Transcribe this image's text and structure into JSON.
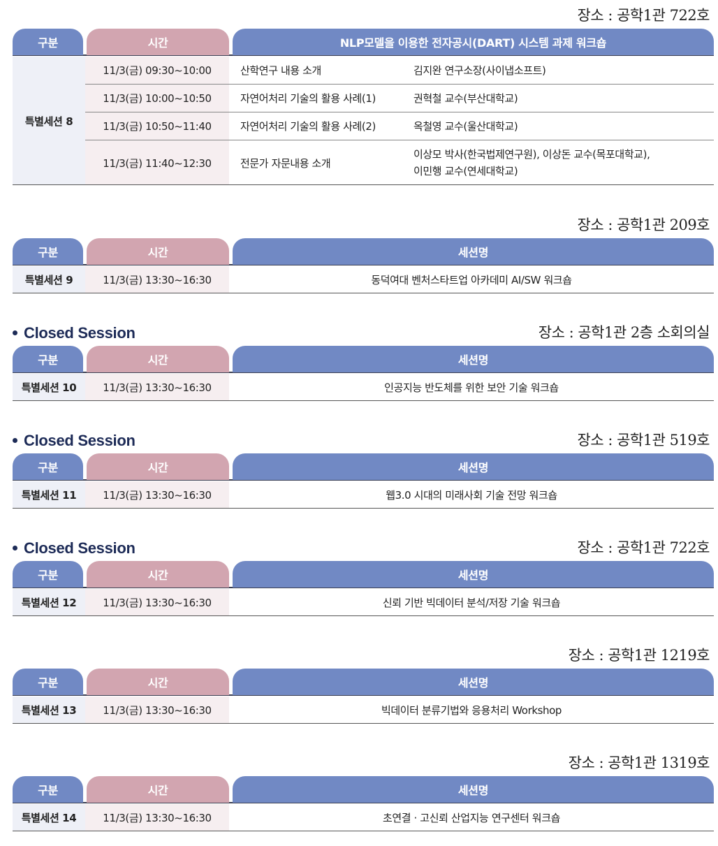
{
  "headers": {
    "gubun": "구분",
    "time": "시간",
    "session_name": "세션명"
  },
  "s8": {
    "location": "장소 : 공학1관 722호",
    "title": "NLP모델을 이용한 전자공시(DART) 시스템 과제 워크숍",
    "gubun": "특별세션 8",
    "rows": [
      {
        "time": "11/3(금) 09:30~10:00",
        "topic": "산학연구 내용 소개",
        "speaker": "김지완 연구소장(사이냅소프트)"
      },
      {
        "time": "11/3(금) 10:00~10:50",
        "topic": "자연어처리 기술의 활용 사례(1)",
        "speaker": "권혁철 교수(부산대학교)"
      },
      {
        "time": "11/3(금) 10:50~11:40",
        "topic": "자연어처리 기술의 활용 사례(2)",
        "speaker": "옥철영 교수(울산대학교)"
      },
      {
        "time": "11/3(금) 11:40~12:30",
        "topic": "전문가 자문내용 소개",
        "speaker": "이상모 박사(한국법제연구원), 이상돈 교수(목포대학교),",
        "speaker2": "이민행 교수(연세대학교)"
      }
    ]
  },
  "sessions": [
    {
      "closed": "",
      "location": "장소 : 공학1관 209호",
      "gubun": "특별세션 9",
      "time": "11/3(금) 13:30~16:30",
      "name": "동덕여대 벤처스타트업 아카데미 AI/SW 워크숍"
    },
    {
      "closed": "Closed Session",
      "location": "장소 : 공학1관 2층 소회의실",
      "gubun": "특별세션 10",
      "time": "11/3(금) 13:30~16:30",
      "name": "인공지능 반도체를 위한 보안 기술 워크숍"
    },
    {
      "closed": "Closed Session",
      "location": "장소 : 공학1관 519호",
      "gubun": "특별세션 11",
      "time": "11/3(금) 13:30~16:30",
      "name": "웹3.0 시대의 미래사회 기술 전망 워크숍"
    },
    {
      "closed": "Closed Session",
      "location": "장소 : 공학1관 722호",
      "gubun": "특별세션 12",
      "time": "11/3(금) 13:30~16:30",
      "name": "신뢰 기반 빅데이터 분석/저장 기술 워크숍"
    },
    {
      "closed": "",
      "location": "장소 : 공학1관 1219호",
      "gubun": "특별세션 13",
      "time": "11/3(금) 13:30~16:30",
      "name": "빅데이터 분류기법와 응용처리 Workshop"
    },
    {
      "closed": "",
      "location": "장소 : 공학1관 1319호",
      "gubun": "특별세션 14",
      "time": "11/3(금) 13:30~16:30",
      "name": "초연결 · 고신뢰 산업지능 연구센터 워크숍"
    }
  ]
}
